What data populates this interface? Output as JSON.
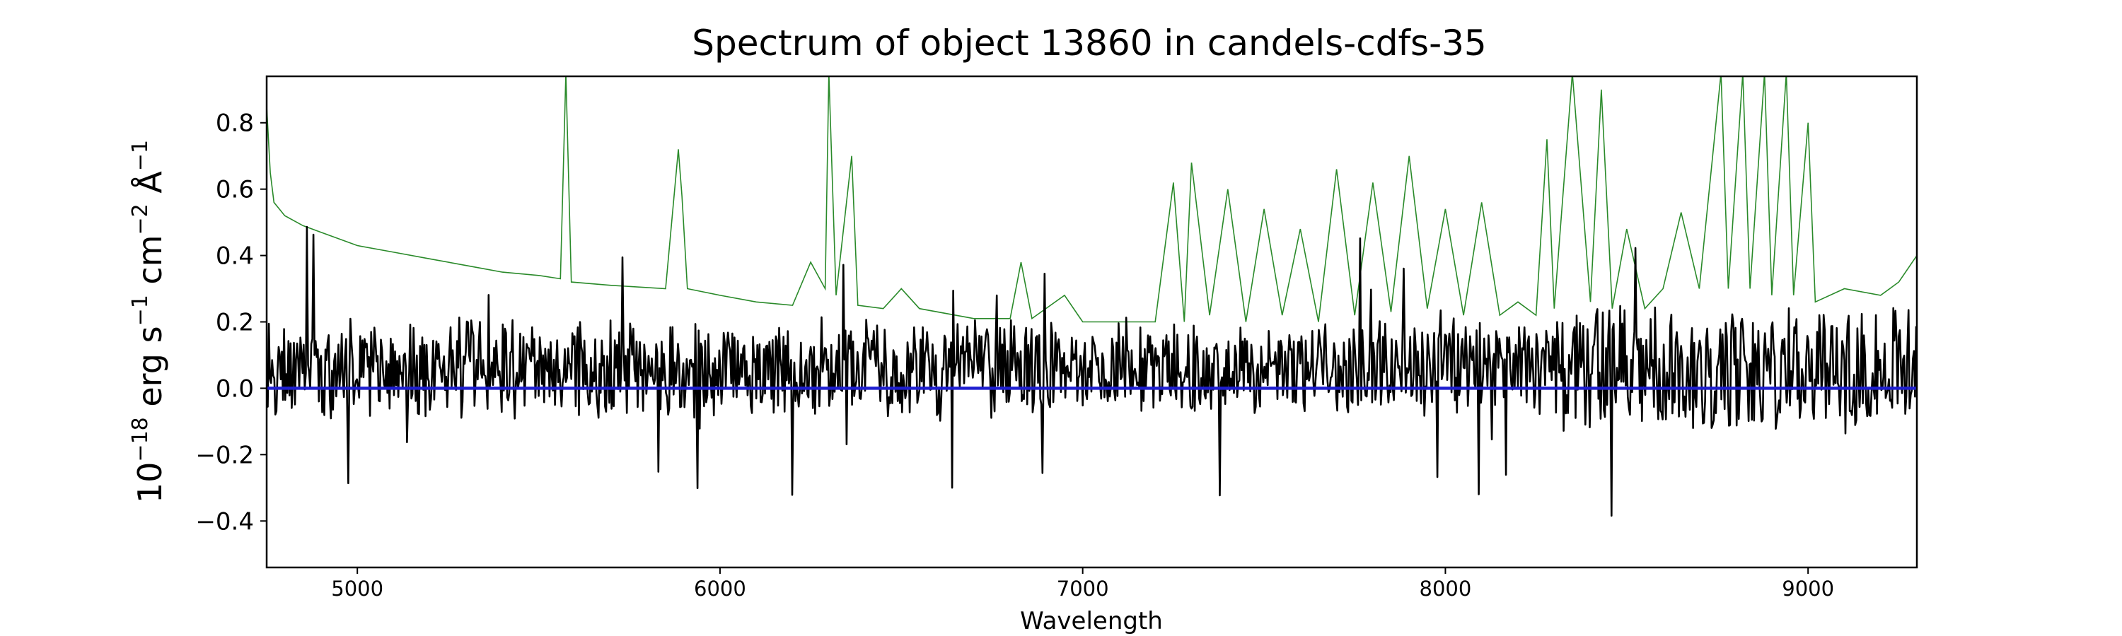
{
  "chart_data": {
    "type": "line",
    "title": "Spectrum of object 13860 in candels-cdfs-35",
    "xlabel": "Wavelength",
    "ylabel": {
      "base": "10",
      "exp1": "−18",
      "unit1": " erg s",
      "exp2": "−1",
      "unit2": " cm",
      "exp3": "−2",
      "unit3": " Å",
      "exp4": "−1"
    },
    "xlim": [
      4750,
      9300
    ],
    "ylim": [
      -0.54,
      0.94
    ],
    "x_ticks": [
      5000,
      6000,
      7000,
      8000,
      9000
    ],
    "x_tick_labels": [
      "5000",
      "6000",
      "7000",
      "8000",
      "9000"
    ],
    "y_ticks": [
      -0.4,
      -0.2,
      0.0,
      0.2,
      0.4,
      0.6,
      0.8
    ],
    "y_tick_labels": [
      "−0.4",
      "−0.2",
      "0.0",
      "0.2",
      "0.4",
      "0.6",
      "0.8"
    ],
    "grid": false,
    "series": [
      {
        "role": "error",
        "color": "#2a8a2a",
        "points": [
          [
            4750,
            0.85
          ],
          [
            4760,
            0.65
          ],
          [
            4770,
            0.56
          ],
          [
            4785,
            0.54
          ],
          [
            4800,
            0.52
          ],
          [
            4850,
            0.49
          ],
          [
            4900,
            0.47
          ],
          [
            5000,
            0.43
          ],
          [
            5100,
            0.41
          ],
          [
            5200,
            0.39
          ],
          [
            5300,
            0.37
          ],
          [
            5400,
            0.35
          ],
          [
            5500,
            0.34
          ],
          [
            5560,
            0.33
          ],
          [
            5575,
            0.95
          ],
          [
            5590,
            0.32
          ],
          [
            5700,
            0.31
          ],
          [
            5850,
            0.3
          ],
          [
            5885,
            0.72
          ],
          [
            5895,
            0.58
          ],
          [
            5910,
            0.3
          ],
          [
            6000,
            0.28
          ],
          [
            6100,
            0.26
          ],
          [
            6200,
            0.25
          ],
          [
            6250,
            0.38
          ],
          [
            6290,
            0.3
          ],
          [
            6300,
            0.95
          ],
          [
            6320,
            0.28
          ],
          [
            6363,
            0.7
          ],
          [
            6380,
            0.25
          ],
          [
            6450,
            0.24
          ],
          [
            6500,
            0.3
          ],
          [
            6550,
            0.24
          ],
          [
            6700,
            0.21
          ],
          [
            6800,
            0.21
          ],
          [
            6830,
            0.38
          ],
          [
            6860,
            0.21
          ],
          [
            6950,
            0.28
          ],
          [
            7000,
            0.2
          ],
          [
            7100,
            0.2
          ],
          [
            7200,
            0.2
          ],
          [
            7250,
            0.62
          ],
          [
            7280,
            0.2
          ],
          [
            7300,
            0.68
          ],
          [
            7350,
            0.22
          ],
          [
            7400,
            0.6
          ],
          [
            7450,
            0.2
          ],
          [
            7500,
            0.54
          ],
          [
            7550,
            0.22
          ],
          [
            7600,
            0.48
          ],
          [
            7650,
            0.2
          ],
          [
            7700,
            0.66
          ],
          [
            7750,
            0.22
          ],
          [
            7800,
            0.62
          ],
          [
            7850,
            0.23
          ],
          [
            7900,
            0.7
          ],
          [
            7950,
            0.24
          ],
          [
            8000,
            0.54
          ],
          [
            8050,
            0.22
          ],
          [
            8100,
            0.56
          ],
          [
            8150,
            0.22
          ],
          [
            8200,
            0.26
          ],
          [
            8250,
            0.22
          ],
          [
            8280,
            0.75
          ],
          [
            8300,
            0.24
          ],
          [
            8350,
            0.95
          ],
          [
            8400,
            0.26
          ],
          [
            8430,
            0.9
          ],
          [
            8460,
            0.24
          ],
          [
            8500,
            0.48
          ],
          [
            8550,
            0.24
          ],
          [
            8600,
            0.3
          ],
          [
            8650,
            0.53
          ],
          [
            8700,
            0.3
          ],
          [
            8760,
            0.95
          ],
          [
            8780,
            0.3
          ],
          [
            8820,
            0.95
          ],
          [
            8840,
            0.3
          ],
          [
            8880,
            0.95
          ],
          [
            8900,
            0.28
          ],
          [
            8940,
            0.95
          ],
          [
            8960,
            0.28
          ],
          [
            9000,
            0.8
          ],
          [
            9020,
            0.26
          ],
          [
            9100,
            0.3
          ],
          [
            9200,
            0.28
          ],
          [
            9250,
            0.32
          ],
          [
            9300,
            0.4
          ]
        ]
      },
      {
        "role": "model",
        "color": "#1f1fd0",
        "points": [
          [
            4750,
            0.0
          ],
          [
            9300,
            0.0
          ]
        ]
      }
    ]
  }
}
